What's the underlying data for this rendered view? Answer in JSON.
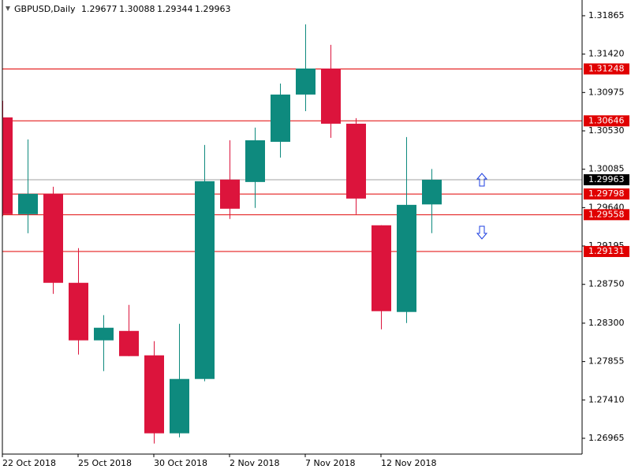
{
  "chart_data": {
    "type": "candlestick",
    "title": "GBPUSD,Daily",
    "categories": [
      "22 Oct 2018",
      null,
      null,
      "25 Oct 2018",
      null,
      null,
      "30 Oct 2018",
      null,
      null,
      "2 Nov 2018",
      null,
      null,
      "7 Nov 2018",
      null,
      null,
      "12 Nov 2018",
      null,
      null
    ],
    "open": [
      1.30686,
      1.29563,
      1.298,
      1.28768,
      1.28101,
      1.2821,
      1.27927,
      1.27023,
      1.27653,
      1.29965,
      1.29937,
      1.30403,
      1.30951,
      1.31253,
      1.30613,
      1.29435,
      1.2843,
      1.29677
    ],
    "high": [
      1.30878,
      1.30431,
      1.29882,
      1.2917,
      1.28393,
      1.28512,
      1.28092,
      1.28293,
      1.30367,
      1.30421,
      1.30568,
      1.31079,
      1.31765,
      1.31527,
      1.30677,
      1.29435,
      1.30458,
      1.30088
    ],
    "low": [
      1.2954,
      1.29343,
      1.2864,
      1.27936,
      1.27744,
      1.27918,
      1.26904,
      1.26976,
      1.27626,
      1.29508,
      1.29636,
      1.3022,
      1.30759,
      1.30449,
      1.29563,
      1.28229,
      1.28302,
      1.29344
    ],
    "close": [
      1.29563,
      1.298,
      1.28768,
      1.28101,
      1.28247,
      1.27918,
      1.27023,
      1.27653,
      1.29946,
      1.29627,
      1.30421,
      1.30951,
      1.31253,
      1.30613,
      1.29745,
      1.28439,
      1.29672,
      1.29963
    ],
    "up_color": "#0e8a7e",
    "down_color": "#dc143c",
    "ylim": [
      1.26782,
      1.3202
    ],
    "yticks": [
      1.31865,
      {
        "value": 1.3142,
        "label": "1.31420"
      },
      1.30975,
      {
        "value": 1.3053,
        "label": "1.30530"
      },
      1.30085,
      {
        "value": 1.2964,
        "label": "1.29640"
      },
      1.29195,
      {
        "value": 1.2875,
        "label": "1.28750"
      },
      {
        "value": 1.283,
        "label": "1.28300"
      },
      1.27855,
      {
        "value": 1.2741,
        "label": "1.27410"
      },
      1.26965
    ],
    "levels": [
      1.31248,
      1.30646,
      1.29798,
      1.29558,
      1.29131
    ],
    "level_color": "#e00000",
    "price_line_color": "#a0a0a0"
  }
}
